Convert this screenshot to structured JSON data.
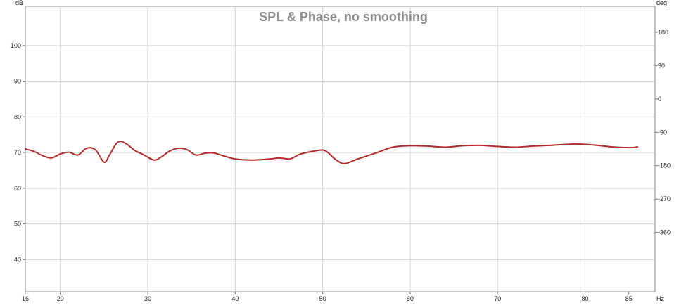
{
  "chart_data": {
    "type": "line",
    "title": "SPL & Phase, no smoothing",
    "left_axis_unit": "dB",
    "right_axis_unit": "deg",
    "x_axis_unit": "Hz",
    "xlim": [
      16,
      88
    ],
    "ylim": [
      31,
      111
    ],
    "y2lim": [
      -520,
      250
    ],
    "x_ticks": [
      16,
      20,
      30,
      40,
      50,
      60,
      70,
      80,
      85
    ],
    "y_ticks": [
      40,
      50,
      60,
      70,
      80,
      90,
      100
    ],
    "y2_ticks": [
      -360,
      -270,
      -180,
      -90,
      0,
      90,
      180
    ],
    "grid": true,
    "series": [
      {
        "color": "#b22a2a",
        "points": [
          [
            16,
            71
          ],
          [
            17,
            70.3
          ],
          [
            18,
            69.1
          ],
          [
            19,
            68.5
          ],
          [
            20,
            69.6
          ],
          [
            21,
            70.1
          ],
          [
            22,
            69.3
          ],
          [
            23,
            71.2
          ],
          [
            24,
            70.8
          ],
          [
            25,
            67.3
          ],
          [
            25.6,
            69.2
          ],
          [
            26.4,
            72.5
          ],
          [
            27,
            73.1
          ],
          [
            27.8,
            72
          ],
          [
            28.5,
            70.6
          ],
          [
            29.5,
            69.4
          ],
          [
            30.7,
            67.9
          ],
          [
            31.5,
            68.7
          ],
          [
            32.5,
            70.4
          ],
          [
            33.5,
            71.2
          ],
          [
            34.5,
            70.8
          ],
          [
            35.5,
            69.3
          ],
          [
            36.5,
            69.8
          ],
          [
            37.5,
            69.9
          ],
          [
            38.5,
            69.2
          ],
          [
            40,
            68.2
          ],
          [
            42,
            67.9
          ],
          [
            44,
            68.2
          ],
          [
            45,
            68.5
          ],
          [
            46,
            68.2
          ],
          [
            46.5,
            68.4
          ],
          [
            47.5,
            69.6
          ],
          [
            49,
            70.4
          ],
          [
            50,
            70.7
          ],
          [
            50.6,
            70
          ],
          [
            51.5,
            68
          ],
          [
            52.5,
            66.9
          ],
          [
            54,
            68.2
          ],
          [
            56,
            69.8
          ],
          [
            58,
            71.5
          ],
          [
            60,
            71.9
          ],
          [
            62,
            71.8
          ],
          [
            64,
            71.5
          ],
          [
            66,
            71.9
          ],
          [
            68,
            72.0
          ],
          [
            70,
            71.7
          ],
          [
            72,
            71.5
          ],
          [
            74,
            71.8
          ],
          [
            76,
            72.0
          ],
          [
            78,
            72.3
          ],
          [
            79,
            72.4
          ],
          [
            81,
            72.1
          ],
          [
            83,
            71.6
          ],
          [
            84.5,
            71.4
          ],
          [
            85.5,
            71.4
          ],
          [
            86,
            71.6
          ]
        ]
      }
    ]
  }
}
